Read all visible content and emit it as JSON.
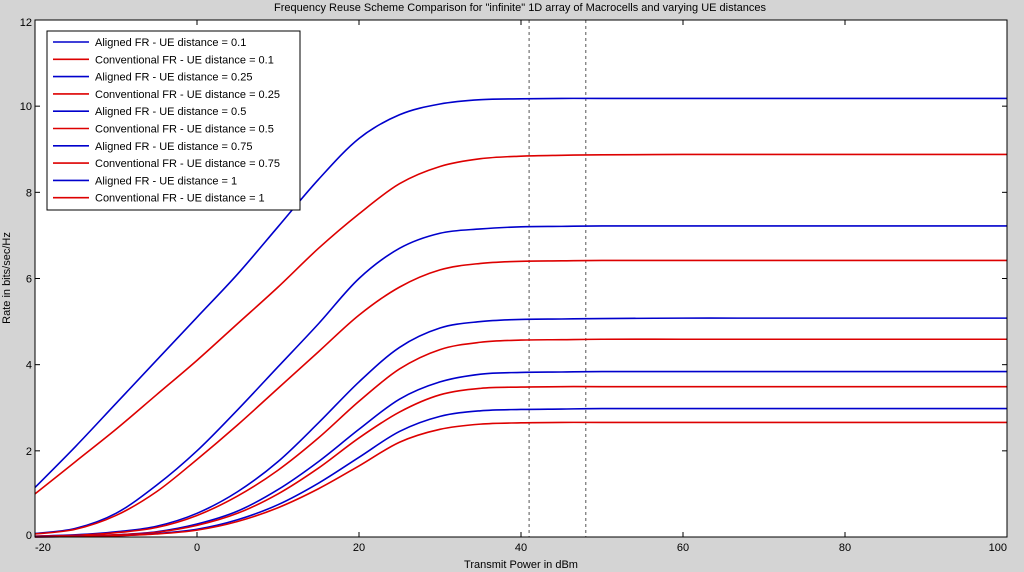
{
  "chart_data": {
    "type": "line",
    "title": "Frequency Reuse Scheme Comparison for \"infinite\" 1D array of Macrocells and varying UE distances",
    "xlabel": "Transmit Power in dBm",
    "ylabel": "Rate in bits/sec/Hz",
    "xlim": [
      -20,
      100
    ],
    "ylim": [
      0,
      12
    ],
    "xticks": [
      -20,
      0,
      20,
      40,
      60,
      80,
      100
    ],
    "yticks": [
      0,
      2,
      4,
      6,
      8,
      10,
      12
    ],
    "grid": false,
    "legend_position": "top-left",
    "vlines": [
      41,
      48
    ],
    "x": [
      -20,
      -15,
      -10,
      -5,
      0,
      5,
      10,
      15,
      20,
      25,
      30,
      35,
      40,
      45,
      50,
      60,
      70,
      80,
      90,
      100
    ],
    "series": [
      {
        "name": "Aligned FR - UE distance = 0.1",
        "color": "#0000cc",
        "values": [
          1.15,
          2.1,
          3.1,
          4.1,
          5.1,
          6.1,
          7.2,
          8.3,
          9.25,
          9.8,
          10.05,
          10.15,
          10.17,
          10.18,
          10.18,
          10.18,
          10.18,
          10.18,
          10.18,
          10.18
        ]
      },
      {
        "name": "Conventional FR - UE distance = 0.1",
        "color": "#dd0000",
        "values": [
          1.0,
          1.75,
          2.5,
          3.3,
          4.1,
          4.95,
          5.8,
          6.7,
          7.5,
          8.2,
          8.6,
          8.78,
          8.84,
          8.86,
          8.87,
          8.88,
          8.88,
          8.88,
          8.88,
          8.88
        ]
      },
      {
        "name": "Aligned FR - UE distance = 0.25",
        "color": "#0000cc",
        "values": [
          0.08,
          0.2,
          0.55,
          1.2,
          2.0,
          2.95,
          3.95,
          4.95,
          6.0,
          6.7,
          7.05,
          7.15,
          7.2,
          7.21,
          7.22,
          7.22,
          7.22,
          7.22,
          7.22,
          7.22
        ]
      },
      {
        "name": "Conventional FR - UE distance = 0.25",
        "color": "#dd0000",
        "values": [
          0.07,
          0.18,
          0.5,
          1.05,
          1.8,
          2.6,
          3.45,
          4.3,
          5.15,
          5.8,
          6.2,
          6.35,
          6.4,
          6.41,
          6.42,
          6.42,
          6.42,
          6.42,
          6.42,
          6.42
        ]
      },
      {
        "name": "Aligned FR - UE distance = 0.5",
        "color": "#0000cc",
        "values": [
          0.02,
          0.05,
          0.12,
          0.25,
          0.55,
          1.05,
          1.75,
          2.65,
          3.6,
          4.4,
          4.85,
          5.0,
          5.05,
          5.06,
          5.07,
          5.08,
          5.08,
          5.08,
          5.08,
          5.08
        ]
      },
      {
        "name": "Conventional FR - UE distance = 0.5",
        "color": "#dd0000",
        "values": [
          0.02,
          0.04,
          0.1,
          0.22,
          0.5,
          0.95,
          1.55,
          2.3,
          3.15,
          3.9,
          4.35,
          4.52,
          4.57,
          4.58,
          4.59,
          4.59,
          4.59,
          4.59,
          4.59,
          4.59
        ]
      },
      {
        "name": "Aligned FR - UE distance = 0.75",
        "color": "#0000cc",
        "values": [
          0.01,
          0.02,
          0.05,
          0.12,
          0.3,
          0.6,
          1.1,
          1.75,
          2.5,
          3.2,
          3.6,
          3.78,
          3.82,
          3.83,
          3.84,
          3.84,
          3.84,
          3.84,
          3.84,
          3.84
        ]
      },
      {
        "name": "Conventional FR - UE distance = 0.75",
        "color": "#dd0000",
        "values": [
          0.01,
          0.02,
          0.05,
          0.11,
          0.27,
          0.55,
          1.0,
          1.6,
          2.3,
          2.9,
          3.3,
          3.45,
          3.48,
          3.49,
          3.49,
          3.49,
          3.49,
          3.49,
          3.49,
          3.49
        ]
      },
      {
        "name": "Aligned FR - UE distance = 1",
        "color": "#0000cc",
        "values": [
          0.0,
          0.01,
          0.03,
          0.08,
          0.18,
          0.4,
          0.75,
          1.25,
          1.85,
          2.45,
          2.8,
          2.93,
          2.96,
          2.97,
          2.98,
          2.98,
          2.98,
          2.98,
          2.98,
          2.98
        ]
      },
      {
        "name": "Conventional FR - UE distance = 1",
        "color": "#dd0000",
        "values": [
          0.0,
          0.01,
          0.03,
          0.07,
          0.16,
          0.36,
          0.68,
          1.12,
          1.65,
          2.2,
          2.5,
          2.62,
          2.65,
          2.66,
          2.66,
          2.66,
          2.66,
          2.66,
          2.66,
          2.66
        ]
      }
    ]
  }
}
